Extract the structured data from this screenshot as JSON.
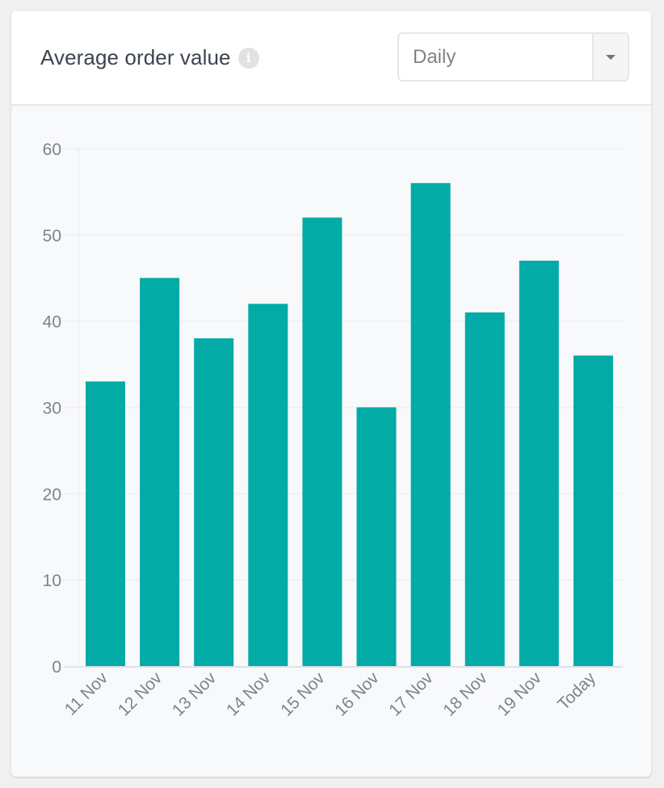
{
  "widget": {
    "title": "Average order value",
    "info_icon": "info-icon",
    "period_select": {
      "selected": "Daily",
      "icon": "chevron-down-icon"
    }
  },
  "colors": {
    "bar": "#02aba6",
    "axis_text": "#7d838c",
    "grid": "#eeeff1",
    "axis_line": "#dde2ea"
  },
  "chart_data": {
    "type": "bar",
    "title": "Average order value",
    "xlabel": "",
    "ylabel": "",
    "categories": [
      "11 Nov",
      "12 Nov",
      "13 Nov",
      "14 Nov",
      "15 Nov",
      "16 Nov",
      "17 Nov",
      "18 Nov",
      "19 Nov",
      "Today"
    ],
    "values": [
      33,
      45,
      38,
      42,
      52,
      30,
      56,
      41,
      47,
      36
    ],
    "ylim": [
      0,
      60
    ],
    "yticks": [
      0,
      10,
      20,
      30,
      40,
      50,
      60
    ],
    "grid": true,
    "legend": null,
    "x_tick_rotation": -45
  }
}
